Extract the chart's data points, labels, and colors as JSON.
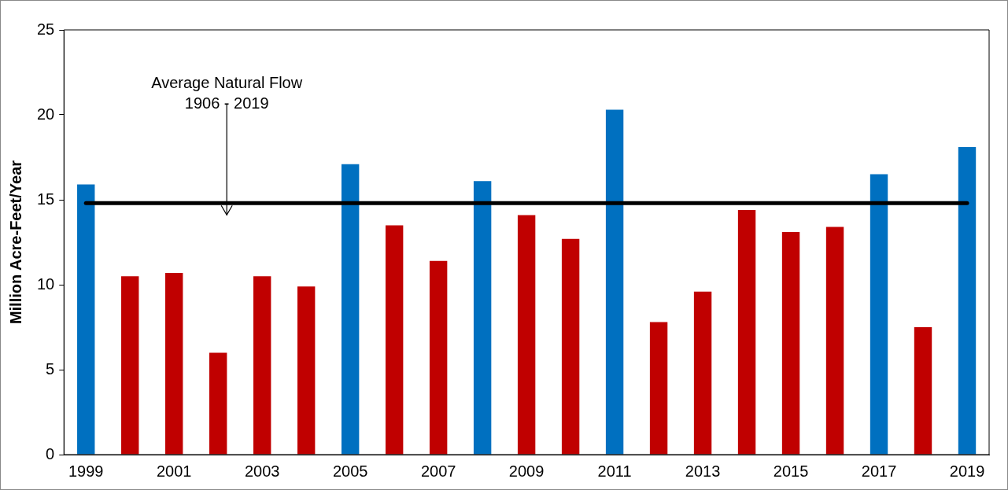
{
  "chart_data": {
    "type": "bar",
    "ylabel": "Million Acre-Feet/Year",
    "categories": [
      "1999",
      null,
      "2001",
      null,
      "2003",
      null,
      "2005",
      null,
      "2007",
      null,
      "2009",
      null,
      "2011",
      null,
      "2013",
      null,
      "2015",
      null,
      "2017",
      null,
      "2019"
    ],
    "values": [
      15.9,
      10.5,
      10.7,
      6.0,
      10.5,
      9.9,
      17.1,
      13.5,
      11.4,
      16.1,
      14.1,
      12.7,
      20.3,
      7.8,
      9.6,
      14.4,
      13.1,
      13.4,
      16.5,
      7.5,
      18.1
    ],
    "colors": [
      "#0070c0",
      "#c00000",
      "#c00000",
      "#c00000",
      "#c00000",
      "#c00000",
      "#0070c0",
      "#c00000",
      "#c00000",
      "#0070c0",
      "#c00000",
      "#c00000",
      "#0070c0",
      "#c00000",
      "#c00000",
      "#c00000",
      "#c00000",
      "#c00000",
      "#0070c0",
      "#c00000",
      "#0070c0"
    ],
    "ylim": [
      0,
      25
    ],
    "yticks": [
      0,
      5,
      10,
      15,
      20,
      25
    ],
    "grid": false,
    "legend": false,
    "ref_lines": [
      {
        "axis": "y",
        "value": 14.8,
        "label": "Average Natural Flow\n1906 - 2019",
        "color": "#000000"
      }
    ]
  }
}
